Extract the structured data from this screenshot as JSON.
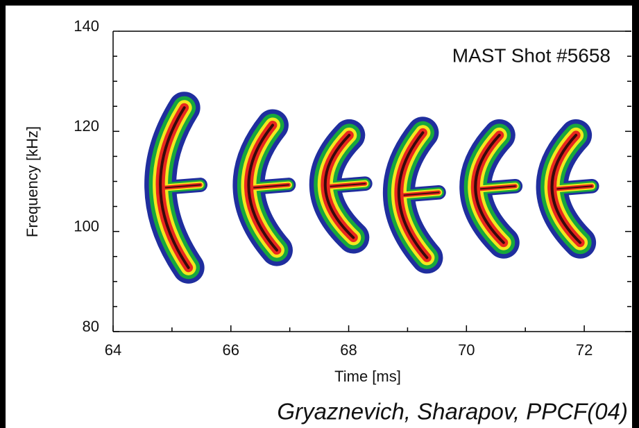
{
  "chart_data": {
    "type": "spectrogram",
    "annotation": "MAST Shot #5658",
    "xlabel": "Time [ms]",
    "ylabel": "Frequency [kHz]",
    "caption": "Gryaznevich, Sharapov, PPCF(04)",
    "xlim": [
      64,
      72.8
    ],
    "ylim": [
      80,
      140
    ],
    "xticks": [
      64,
      66,
      68,
      70,
      72
    ],
    "xminorticks": [
      65,
      67,
      69,
      71
    ],
    "yticks": [
      80,
      100,
      120,
      140
    ],
    "yminorticks": [
      85,
      90,
      95,
      105,
      110,
      115,
      125,
      130,
      135
    ],
    "level_colors": [
      "#1f2e9e",
      "#18a83c",
      "#f2e81e",
      "#e8281e",
      "#3a0a0a"
    ],
    "bursts": [
      {
        "time": 64.95,
        "fmin": 90,
        "fmax": 127.5
      },
      {
        "time": 66.45,
        "fmin": 93.5,
        "fmax": 124
      },
      {
        "time": 67.75,
        "fmin": 96,
        "fmax": 122
      },
      {
        "time": 69.0,
        "fmin": 92,
        "fmax": 122.5
      },
      {
        "time": 70.3,
        "fmin": 95,
        "fmax": 122
      },
      {
        "time": 71.6,
        "fmin": 95,
        "fmax": 122
      }
    ]
  }
}
